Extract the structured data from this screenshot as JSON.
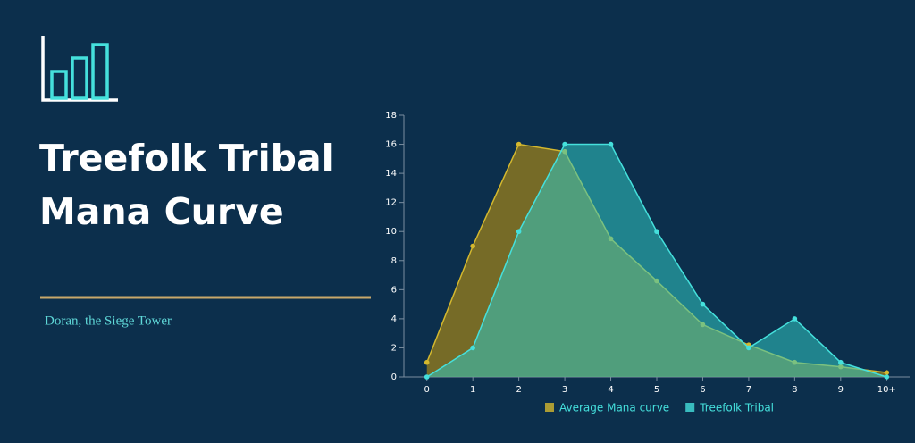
{
  "chart_data": {
    "type": "area",
    "title": "Treefolk Tribal Mana Curve",
    "subtitle": "Doran, the Siege Tower",
    "categories": [
      "0",
      "1",
      "2",
      "3",
      "4",
      "5",
      "6",
      "7",
      "8",
      "9",
      "10+"
    ],
    "series": [
      {
        "name": "Average Mana curve",
        "color": "#d4b82e",
        "values": [
          1,
          9,
          16,
          15.5,
          9.5,
          6.6,
          3.6,
          2.2,
          1,
          0.7,
          0.3
        ]
      },
      {
        "name": "Treefolk Tribal",
        "color": "#45e0dc",
        "values": [
          0,
          2,
          10,
          16,
          16,
          10,
          5,
          2,
          4,
          1,
          0
        ]
      }
    ],
    "ylim": [
      0,
      18
    ],
    "yticks": [
      0,
      2,
      4,
      6,
      8,
      10,
      12,
      14,
      16,
      18
    ],
    "legend": "bottom"
  }
}
